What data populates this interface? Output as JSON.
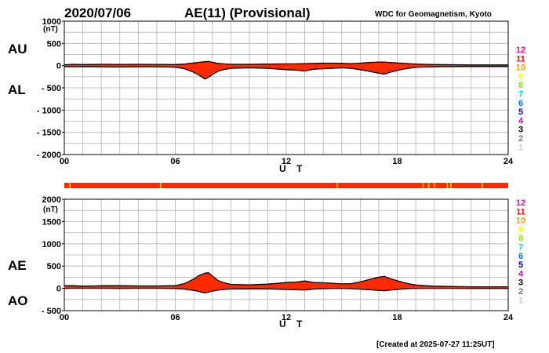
{
  "header": {
    "date": "2020/07/06",
    "title": "AE(11) (Provisional)",
    "source": "WDC for Geomagnetism, Kyoto"
  },
  "footer": {
    "created": "[Created at 2025-07-27 11:25UT]"
  },
  "colors": {
    "fill": "#ff2a00",
    "outline": "#000000",
    "grid": "#b4b4b4",
    "bar": "#ff2a00",
    "bar_marks": "#e8c800"
  },
  "station_legend": [
    {
      "label": "12",
      "color": "#ff00aa"
    },
    {
      "label": "11",
      "color": "#ff0000"
    },
    {
      "label": "10",
      "color": "#ff9900"
    },
    {
      "label": "9",
      "color": "#ffff00"
    },
    {
      "label": "8",
      "color": "#88ee00"
    },
    {
      "label": "7",
      "color": "#00dddd"
    },
    {
      "label": "6",
      "color": "#0077ff"
    },
    {
      "label": "5",
      "color": "#0000cc"
    },
    {
      "label": "4",
      "color": "#cc00cc"
    },
    {
      "label": "3",
      "color": "#000000"
    },
    {
      "label": "2",
      "color": "#777777"
    },
    {
      "label": "1",
      "color": "#cccccc"
    }
  ],
  "station_count_bar": {
    "value": 11,
    "drops_to_10_at_hour": [
      0.3,
      5.2,
      14.75,
      19.4,
      19.7,
      20.0,
      20.7,
      20.9,
      22.6
    ]
  },
  "chart_data": [
    {
      "type": "area",
      "id": "au-al",
      "series": [
        {
          "name": "AU",
          "x": [
            0,
            0.5,
            1,
            2,
            3,
            4,
            5,
            6,
            6.5,
            7,
            7.3,
            7.6,
            7.8,
            8,
            8.3,
            8.6,
            9,
            10,
            11,
            12,
            12.5,
            13,
            13.5,
            14,
            14.5,
            15,
            15.5,
            16,
            16.5,
            17,
            17.3,
            17.6,
            18,
            18.3,
            18.6,
            19,
            19.5,
            20,
            21,
            22,
            23,
            24
          ],
          "y": [
            20,
            30,
            25,
            30,
            28,
            30,
            28,
            25,
            35,
            60,
            75,
            90,
            95,
            75,
            50,
            40,
            30,
            30,
            35,
            40,
            40,
            45,
            50,
            55,
            55,
            50,
            45,
            55,
            70,
            80,
            80,
            70,
            60,
            55,
            45,
            35,
            30,
            25,
            20,
            15,
            15,
            15
          ]
        },
        {
          "name": "AL",
          "x": [
            0,
            0.5,
            1,
            2,
            3,
            4,
            5,
            6,
            6.5,
            7,
            7.3,
            7.6,
            7.8,
            8,
            8.3,
            8.6,
            9,
            10,
            11,
            12,
            12.5,
            13,
            13.5,
            14,
            14.5,
            15,
            15.5,
            16,
            16.5,
            17,
            17.3,
            17.6,
            18,
            18.3,
            18.6,
            19,
            19.5,
            20,
            21,
            22,
            23,
            24
          ],
          "y": [
            -20,
            -25,
            -20,
            -25,
            -30,
            -25,
            -25,
            -35,
            -70,
            -150,
            -220,
            -300,
            -260,
            -200,
            -130,
            -90,
            -60,
            -50,
            -60,
            -90,
            -100,
            -120,
            -80,
            -70,
            -60,
            -50,
            -60,
            -90,
            -130,
            -170,
            -190,
            -150,
            -110,
            -80,
            -60,
            -40,
            -30,
            -25,
            -20,
            -20,
            -20,
            -20
          ]
        }
      ],
      "left_labels": [
        "AU",
        "AL"
      ],
      "xlabel": "U T",
      "ylabel": "(nT)",
      "xlim": [
        0,
        24
      ],
      "ylim": [
        -2000,
        1000
      ],
      "xticks": [
        "00",
        "06",
        "12",
        "18",
        "24"
      ],
      "xtick_values": [
        0,
        6,
        12,
        18,
        24
      ],
      "yticks": [
        "1000",
        "500",
        "0",
        "- 500",
        "- 1000",
        "- 1500",
        "- 2000"
      ],
      "ytick_values": [
        1000,
        500,
        0,
        -500,
        -1000,
        -1500,
        -2000
      ],
      "grid": true
    },
    {
      "type": "area",
      "id": "ae-ao",
      "series": [
        {
          "name": "AE",
          "x": [
            0,
            0.5,
            1,
            2,
            3,
            4,
            5,
            6,
            6.5,
            7,
            7.3,
            7.6,
            7.8,
            8,
            8.3,
            8.6,
            9,
            10,
            11,
            12,
            12.5,
            13,
            13.5,
            14,
            14.5,
            15,
            15.5,
            16,
            16.5,
            17,
            17.3,
            17.6,
            18,
            18.3,
            18.6,
            19,
            19.5,
            20,
            21,
            22,
            23,
            24
          ],
          "y": [
            60,
            60,
            50,
            60,
            60,
            55,
            55,
            60,
            110,
            210,
            290,
            340,
            350,
            280,
            180,
            130,
            90,
            80,
            95,
            130,
            140,
            165,
            130,
            125,
            115,
            100,
            105,
            145,
            200,
            250,
            270,
            220,
            170,
            135,
            105,
            75,
            60,
            50,
            40,
            35,
            35,
            35
          ]
        },
        {
          "name": "AO",
          "x": [
            0,
            0.5,
            1,
            2,
            3,
            4,
            5,
            6,
            6.5,
            7,
            7.3,
            7.6,
            7.8,
            8,
            8.3,
            8.6,
            9,
            10,
            11,
            12,
            12.5,
            13,
            13.5,
            14,
            14.5,
            15,
            15.5,
            16,
            16.5,
            17,
            17.3,
            17.6,
            18,
            18.3,
            18.6,
            19,
            19.5,
            20,
            21,
            22,
            23,
            24
          ],
          "y": [
            0,
            2,
            2,
            2,
            -1,
            2,
            1,
            -5,
            -17,
            -45,
            -72,
            -105,
            -82,
            -62,
            -40,
            -25,
            -15,
            -10,
            -12,
            -25,
            -30,
            -37,
            -15,
            -7,
            -2,
            0,
            -7,
            -17,
            -30,
            -45,
            -55,
            -40,
            -25,
            -12,
            -7,
            -2,
            0,
            0,
            0,
            -2,
            -2,
            -2
          ]
        }
      ],
      "left_labels": [
        "AE",
        "AO"
      ],
      "xlabel": "U T",
      "ylabel": "(nT)",
      "xlim": [
        0,
        24
      ],
      "ylim": [
        -500,
        2000
      ],
      "xticks": [
        "00",
        "06",
        "12",
        "18",
        "24"
      ],
      "xtick_values": [
        0,
        6,
        12,
        18,
        24
      ],
      "yticks": [
        "2000",
        "1500",
        "1000",
        "500",
        "0",
        "- 500"
      ],
      "ytick_values": [
        2000,
        1500,
        1000,
        500,
        0,
        -500
      ],
      "grid": true
    }
  ]
}
